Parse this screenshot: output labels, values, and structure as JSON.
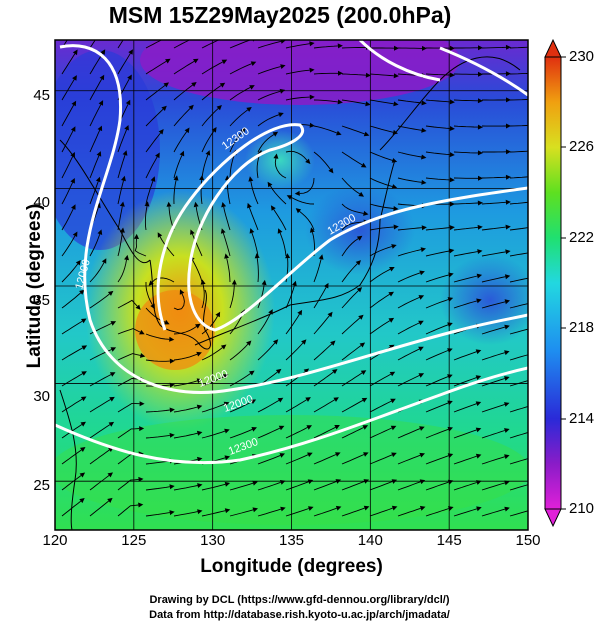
{
  "figure": {
    "title": "MSM 15Z29May2025 (200.0hPa)",
    "xlabel": "Longitude (degrees)",
    "ylabel": "Latitude  (degrees)",
    "credits": [
      "Drawing by DCL (https://www.gfd-dennou.org/library/dcl/)",
      "Data from http://database.rish.kyoto-u.ac.jp/arch/jmadata/"
    ]
  },
  "axes": {
    "x_ticks": [
      "120",
      "125",
      "130",
      "135",
      "140",
      "145",
      "150"
    ],
    "y_ticks": [
      "25",
      "30",
      "35",
      "40",
      "45"
    ],
    "xlim": [
      120,
      150
    ],
    "ylim": [
      22.5,
      47.6
    ]
  },
  "colorbar": {
    "ticks": [
      "230",
      "226",
      "222",
      "218",
      "214",
      "210"
    ],
    "min": 210,
    "max": 230,
    "colors": [
      "#e020d8",
      "#8a1cc8",
      "#2a2ad8",
      "#1e8ef0",
      "#22d8e0",
      "#20e070",
      "#5ee020",
      "#d8e020",
      "#f0a010",
      "#e03010"
    ]
  },
  "contour_labels": [
    "12000",
    "12000",
    "12000",
    "12300",
    "12300",
    "12300"
  ],
  "map_data": {
    "field": "temperature (K) shaded, geopotential height contours, streamlines",
    "warm_core_center": [
      127,
      33.5
    ],
    "cold_cores": [
      [
        132,
        42
      ],
      [
        139,
        38
      ],
      [
        148,
        35
      ]
    ]
  }
}
